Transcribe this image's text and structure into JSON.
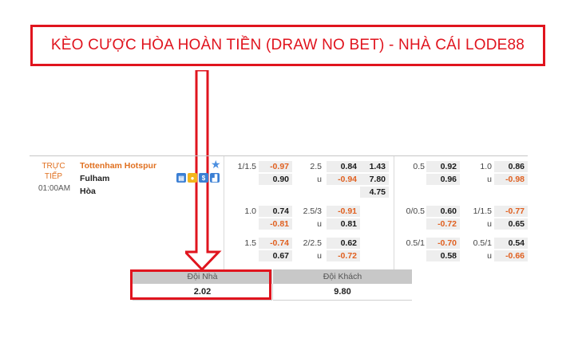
{
  "banner": {
    "text": "KÈO CƯỢC HÒA HOÀN TIỀN (DRAW NO BET) - NHÀ CÁI LODE88"
  },
  "match": {
    "status_line1": "TRỰC",
    "status_line2": "TIẾP",
    "time": "01:00AM",
    "home": "Tottenham Hotspur",
    "away": "Fulham",
    "draw": "Hòa",
    "stat_icons": [
      "stats-icon",
      "coin-icon",
      "dollar-icon",
      "chart-icon"
    ]
  },
  "odds_rows": [
    {
      "hdp": {
        "line": "1/1.5",
        "home": "-0.97",
        "away": "0.90"
      },
      "ou": {
        "line": "2.5",
        "home": "0.84",
        "away_label": "u",
        "away": "-0.94"
      },
      "x12": {
        "home": "1.43",
        "away": "7.80",
        "draw": "4.75"
      },
      "hdp_half": {
        "line": "0.5",
        "home": "0.92",
        "away": "0.96"
      },
      "ou_half": {
        "line": "1.0",
        "home": "0.86",
        "away_label": "u",
        "away": "-0.98"
      }
    },
    {
      "hdp": {
        "line": "1.0",
        "home": "0.74",
        "away": "-0.81"
      },
      "ou": {
        "line": "2.5/3",
        "home": "-0.91",
        "away_label": "u",
        "away": "0.81"
      },
      "hdp_half": {
        "line": "0/0.5",
        "home": "0.60",
        "away": "-0.72"
      },
      "ou_half": {
        "line": "1/1.5",
        "home": "-0.77",
        "away_label": "u",
        "away": "0.65"
      }
    },
    {
      "hdp": {
        "line": "1.5",
        "home": "-0.74",
        "away": "0.67"
      },
      "ou": {
        "line": "2/2.5",
        "home": "0.62",
        "away_label": "u",
        "away": "-0.72"
      },
      "hdp_half": {
        "line": "0.5/1",
        "home": "-0.70",
        "away": "0.58"
      },
      "ou_half": {
        "line": "0.5/1",
        "home": "0.54",
        "away_label": "u",
        "away": "-0.66"
      }
    }
  ],
  "draw_no_bet": {
    "home_header": "Đội Nhà",
    "away_header": "Đội Khách",
    "home_value": "2.02",
    "away_value": "9.80"
  },
  "colors": {
    "accent_red": "#e0141e",
    "negative_odd": "#e06020",
    "live": "#e07020",
    "star": "#4b8fe0"
  }
}
